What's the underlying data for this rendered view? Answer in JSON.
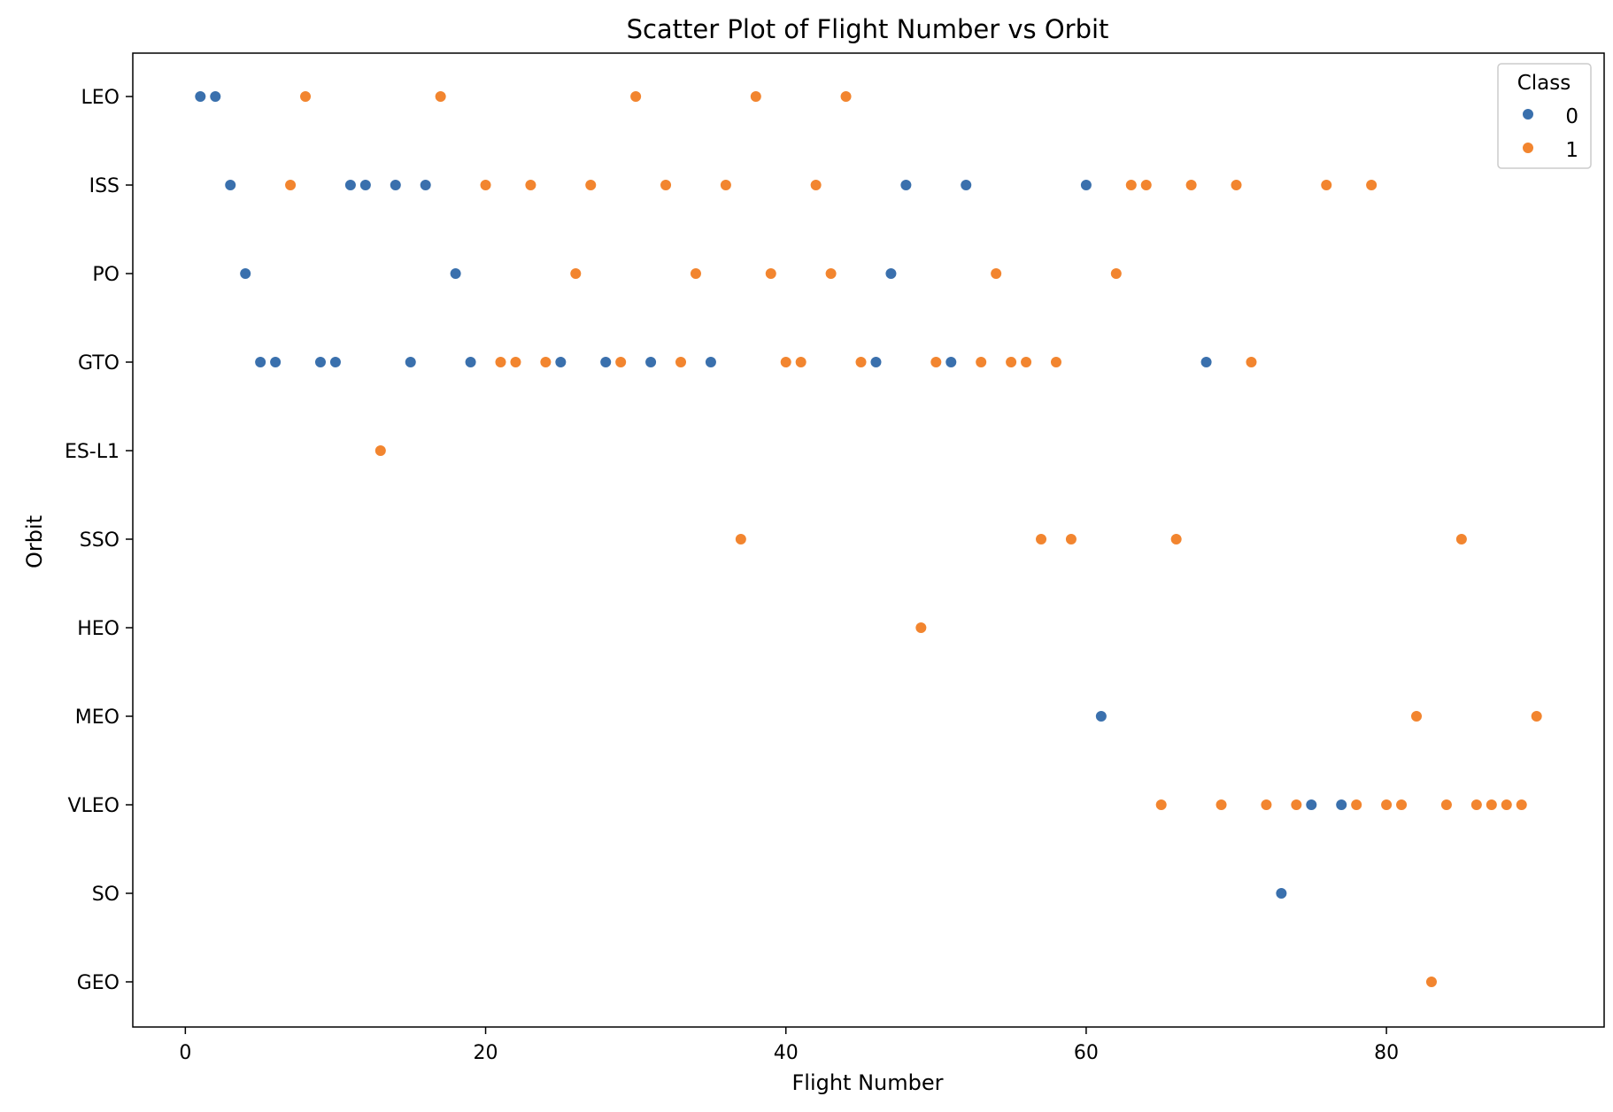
{
  "chart_data": {
    "type": "scatter",
    "title": "Scatter Plot of Flight Number vs Orbit",
    "xlabel": "Flight Number",
    "ylabel": "Orbit",
    "xlim": [
      -3.5,
      94.5
    ],
    "x_ticks": [
      0,
      20,
      40,
      60,
      80
    ],
    "categories": [
      "LEO",
      "ISS",
      "PO",
      "GTO",
      "ES-L1",
      "SSO",
      "HEO",
      "MEO",
      "VLEO",
      "SO",
      "GEO"
    ],
    "grid": false,
    "legend": {
      "title": "Class",
      "position": "top-right",
      "entries": [
        "0",
        "1"
      ]
    },
    "colors": {
      "0": "#3a70ad",
      "1": "#f2852f"
    },
    "series": [
      {
        "name": "0",
        "points": [
          [
            1,
            "LEO"
          ],
          [
            2,
            "LEO"
          ],
          [
            3,
            "ISS"
          ],
          [
            11,
            "ISS"
          ],
          [
            12,
            "ISS"
          ],
          [
            14,
            "ISS"
          ],
          [
            16,
            "ISS"
          ],
          [
            48,
            "ISS"
          ],
          [
            52,
            "ISS"
          ],
          [
            60,
            "ISS"
          ],
          [
            4,
            "PO"
          ],
          [
            18,
            "PO"
          ],
          [
            47,
            "PO"
          ],
          [
            5,
            "GTO"
          ],
          [
            6,
            "GTO"
          ],
          [
            9,
            "GTO"
          ],
          [
            10,
            "GTO"
          ],
          [
            15,
            "GTO"
          ],
          [
            19,
            "GTO"
          ],
          [
            25,
            "GTO"
          ],
          [
            28,
            "GTO"
          ],
          [
            31,
            "GTO"
          ],
          [
            35,
            "GTO"
          ],
          [
            46,
            "GTO"
          ],
          [
            51,
            "GTO"
          ],
          [
            68,
            "GTO"
          ],
          [
            61,
            "MEO"
          ],
          [
            75,
            "VLEO"
          ],
          [
            77,
            "VLEO"
          ],
          [
            73,
            "SO"
          ]
        ]
      },
      {
        "name": "1",
        "points": [
          [
            8,
            "LEO"
          ],
          [
            17,
            "LEO"
          ],
          [
            30,
            "LEO"
          ],
          [
            38,
            "LEO"
          ],
          [
            44,
            "LEO"
          ],
          [
            7,
            "ISS"
          ],
          [
            20,
            "ISS"
          ],
          [
            23,
            "ISS"
          ],
          [
            27,
            "ISS"
          ],
          [
            32,
            "ISS"
          ],
          [
            36,
            "ISS"
          ],
          [
            42,
            "ISS"
          ],
          [
            63,
            "ISS"
          ],
          [
            64,
            "ISS"
          ],
          [
            67,
            "ISS"
          ],
          [
            70,
            "ISS"
          ],
          [
            76,
            "ISS"
          ],
          [
            79,
            "ISS"
          ],
          [
            26,
            "PO"
          ],
          [
            34,
            "PO"
          ],
          [
            39,
            "PO"
          ],
          [
            43,
            "PO"
          ],
          [
            54,
            "PO"
          ],
          [
            62,
            "PO"
          ],
          [
            21,
            "GTO"
          ],
          [
            22,
            "GTO"
          ],
          [
            24,
            "GTO"
          ],
          [
            29,
            "GTO"
          ],
          [
            33,
            "GTO"
          ],
          [
            40,
            "GTO"
          ],
          [
            41,
            "GTO"
          ],
          [
            45,
            "GTO"
          ],
          [
            50,
            "GTO"
          ],
          [
            53,
            "GTO"
          ],
          [
            55,
            "GTO"
          ],
          [
            56,
            "GTO"
          ],
          [
            58,
            "GTO"
          ],
          [
            71,
            "GTO"
          ],
          [
            13,
            "ES-L1"
          ],
          [
            37,
            "SSO"
          ],
          [
            57,
            "SSO"
          ],
          [
            59,
            "SSO"
          ],
          [
            66,
            "SSO"
          ],
          [
            85,
            "SSO"
          ],
          [
            49,
            "HEO"
          ],
          [
            82,
            "MEO"
          ],
          [
            90,
            "MEO"
          ],
          [
            65,
            "VLEO"
          ],
          [
            69,
            "VLEO"
          ],
          [
            72,
            "VLEO"
          ],
          [
            74,
            "VLEO"
          ],
          [
            78,
            "VLEO"
          ],
          [
            80,
            "VLEO"
          ],
          [
            81,
            "VLEO"
          ],
          [
            84,
            "VLEO"
          ],
          [
            86,
            "VLEO"
          ],
          [
            87,
            "VLEO"
          ],
          [
            88,
            "VLEO"
          ],
          [
            89,
            "VLEO"
          ],
          [
            83,
            "GEO"
          ]
        ]
      }
    ]
  }
}
